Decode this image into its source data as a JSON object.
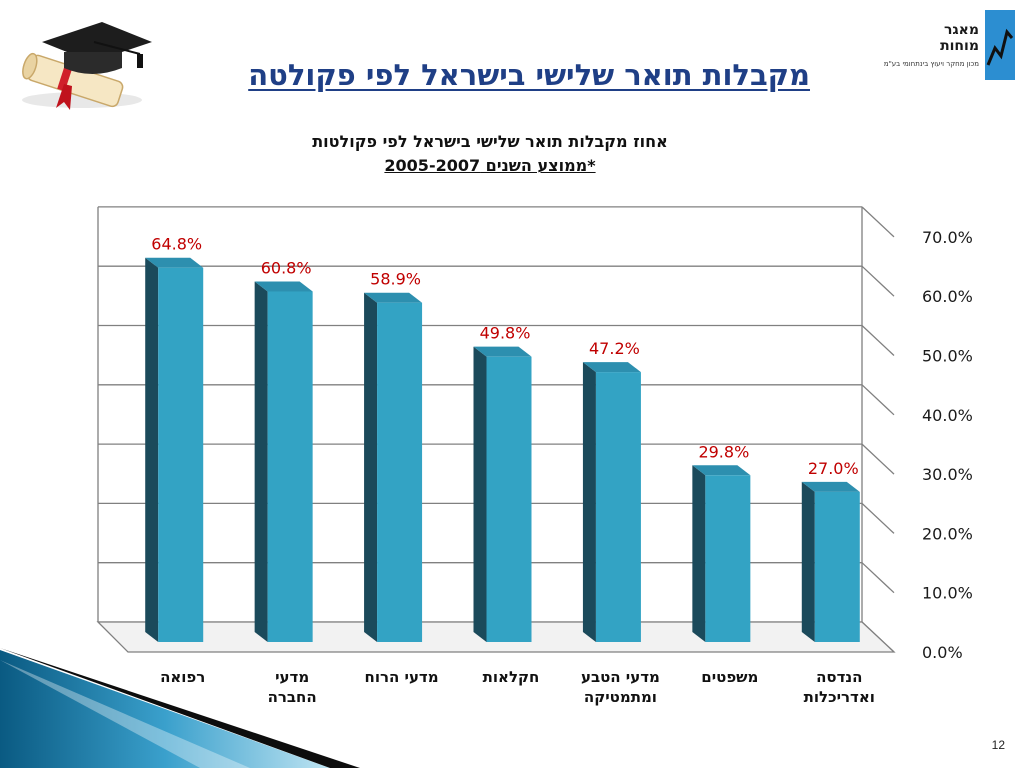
{
  "slide": {
    "title": "מקבלות תואר שלישי בישראל לפי פקולטה",
    "page_number": "12"
  },
  "logo": {
    "name": "מאגר\nמוחות",
    "subtitle": "מכון מחקר ויעוץ בינתחומי בע\"מ"
  },
  "colors": {
    "title": "#1f3f86",
    "bar_front": "#33a3c4",
    "bar_side": "#1b4a5b",
    "bar_top": "#2d8faf",
    "data_label": "#c00000",
    "grid": "#808080",
    "deco_dark": "#0a5a82",
    "deco_light": "#6ec0e0"
  },
  "chart_data": {
    "type": "bar",
    "title": "אחוז מקבלות תואר שלישי בישראל לפי פקולטות",
    "subtitle": "*ממוצע השנים 2005-2007",
    "categories": [
      [
        "רפואה"
      ],
      [
        "מדעי",
        "החברה"
      ],
      [
        "מדעי הרוח"
      ],
      [
        "חקלאות"
      ],
      [
        "מדעי הטבע",
        "ומתמטיקה"
      ],
      [
        "משפטים"
      ],
      [
        "הנדסה",
        "ואדריכלות"
      ]
    ],
    "values": [
      64.8,
      60.8,
      58.9,
      49.8,
      47.2,
      29.8,
      27.0
    ],
    "data_labels": [
      "64.8%",
      "60.8%",
      "58.9%",
      "49.8%",
      "47.2%",
      "29.8%",
      "27.0%"
    ],
    "y_ticks": [
      "0.0%",
      "10.0%",
      "20.0%",
      "30.0%",
      "40.0%",
      "50.0%",
      "60.0%",
      "70.0%"
    ],
    "ylim": [
      0,
      70
    ],
    "grid": true,
    "three_d": true,
    "y_axis_position": "right"
  }
}
